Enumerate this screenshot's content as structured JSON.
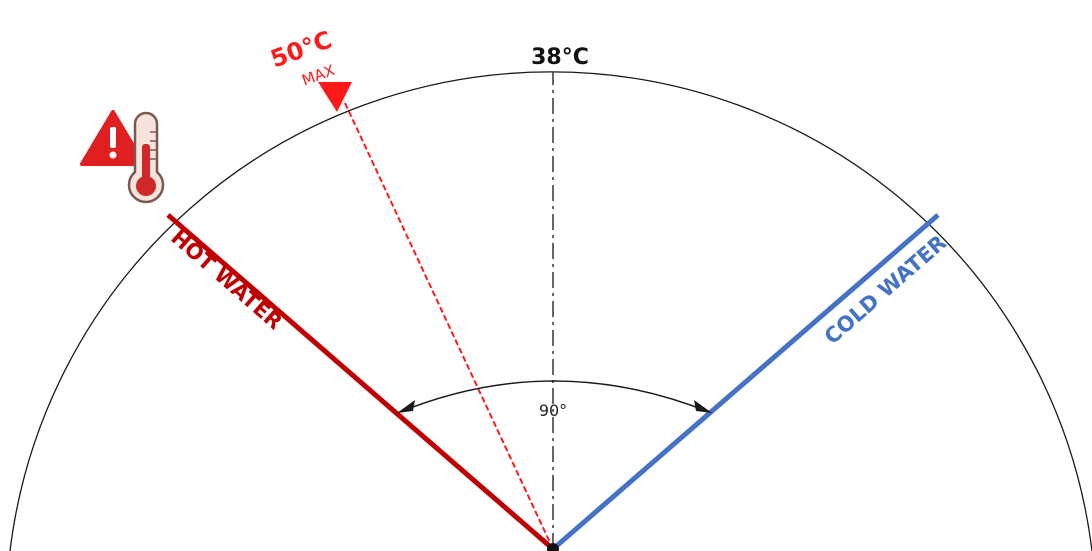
{
  "diagram": {
    "center_label": "38°C",
    "max_temp_value": "50°C",
    "max_temp_caption": "MAX",
    "hot_label": "HOT WATER",
    "cold_label": "COLD WATER",
    "angle_label": "90°",
    "colors": {
      "hot": "#c00000",
      "max": "#ff1a1a",
      "cold": "#4472c4",
      "arc": "#000000",
      "icon_red": "#e02020"
    },
    "warning_icon": "warning-thermometer-icon"
  }
}
